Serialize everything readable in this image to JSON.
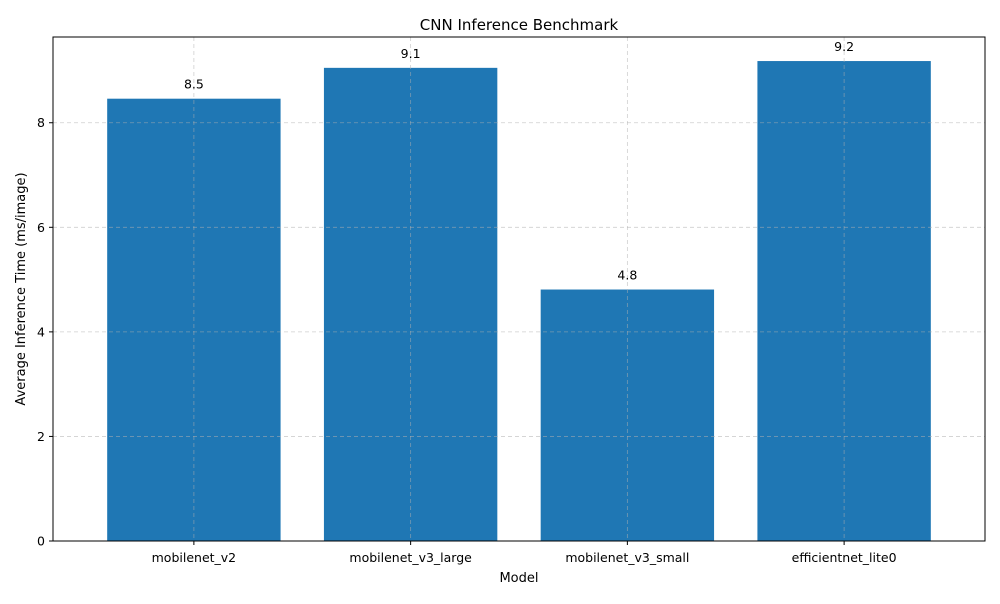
{
  "chart_data": {
    "type": "bar",
    "title": "CNN Inference Benchmark",
    "xlabel": "Model",
    "ylabel": "Average Inference Time (ms/image)",
    "categories": [
      "mobilenet_v2",
      "mobilenet_v3_large",
      "mobilenet_v3_small",
      "efficientnet_lite0"
    ],
    "values": [
      8.46,
      9.05,
      4.81,
      9.18
    ],
    "data_labels": [
      "8.5",
      "9.1",
      "4.8",
      "9.2"
    ],
    "yticks": [
      0,
      2,
      4,
      6,
      8
    ],
    "ytick_labels": [
      "0",
      "2",
      "4",
      "6",
      "8"
    ],
    "ylim": [
      0,
      9.64
    ],
    "grid": true,
    "bar_color": "#1f77b4"
  }
}
